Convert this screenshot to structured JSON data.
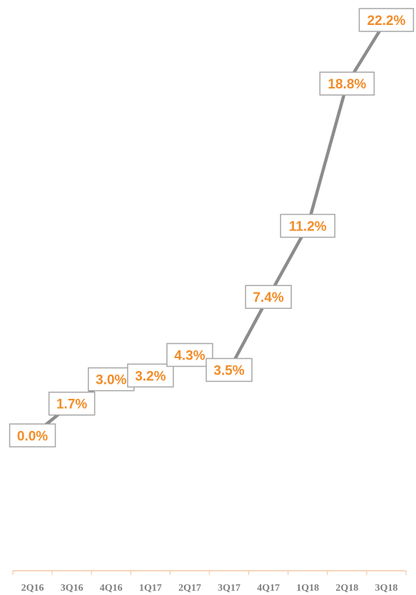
{
  "chart_data": {
    "type": "line",
    "categories": [
      "2Q16",
      "3Q16",
      "4Q16",
      "1Q17",
      "2Q17",
      "3Q17",
      "4Q17",
      "1Q18",
      "2Q18",
      "3Q18"
    ],
    "series": [
      {
        "values": [
          0.0,
          1.7,
          3.0,
          3.2,
          4.3,
          3.5,
          7.4,
          11.2,
          18.8,
          22.2
        ],
        "labels": [
          "0.0%",
          "1.7%",
          "3.0%",
          "3.2%",
          "4.3%",
          "3.5%",
          "7.4%",
          "11.2%",
          "18.8%",
          "22.2%"
        ]
      }
    ],
    "ylim": [
      -3.0,
      22.2
    ],
    "grid": false,
    "legend": "none",
    "colors": {
      "line": "#8c8c8c",
      "label_text": "#f28c28",
      "label_border": "#a6a6a6",
      "axis": "#f4c9a6",
      "tick_text": "#7f7f7f"
    }
  }
}
